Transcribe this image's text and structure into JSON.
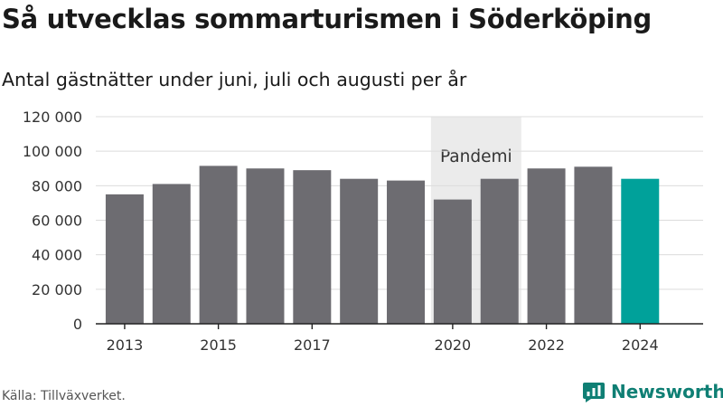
{
  "title": "Så utvecklas sommarturismen i Söderköping",
  "subtitle": "Antal gästnätter under juni, juli och augusti per år",
  "source": "Källa: Tillväxverket.",
  "brand": {
    "name": "Newsworthy",
    "logo_icon": "newsworthy-chart-bubble-icon",
    "color": "#0f7f74"
  },
  "colors": {
    "bar": "#6d6c71",
    "highlight": "#00a19a",
    "band": "#ebebeb",
    "grid": "#dcdcdc",
    "axis": "#222222"
  },
  "chart_data": {
    "type": "bar",
    "title": "Så utvecklas sommarturismen i Söderköping",
    "subtitle": "Antal gästnätter under juni, juli och augusti per år",
    "categories": [
      2013,
      2014,
      2015,
      2016,
      2017,
      2018,
      2019,
      2020,
      2021,
      2022,
      2023,
      2024
    ],
    "values": [
      75000,
      81000,
      91500,
      90000,
      89000,
      84000,
      83000,
      72000,
      84000,
      90000,
      91000,
      84000
    ],
    "highlight_category": 2024,
    "ylim": [
      0,
      120000
    ],
    "yticks": [
      0,
      20000,
      40000,
      60000,
      80000,
      100000,
      120000
    ],
    "ytick_labels": [
      "0",
      "20 000",
      "40 000",
      "60 000",
      "80 000",
      "100 000",
      "120 000"
    ],
    "xtick_labels": [
      "2013",
      "2015",
      "2017",
      "2020",
      "2022",
      "2024"
    ],
    "xtick_categories": [
      2013,
      2015,
      2017,
      2020,
      2022,
      2024
    ],
    "annotation": {
      "label": "Pandemi",
      "from": 2020,
      "to": 2021
    },
    "grid": true,
    "legend": "none"
  }
}
